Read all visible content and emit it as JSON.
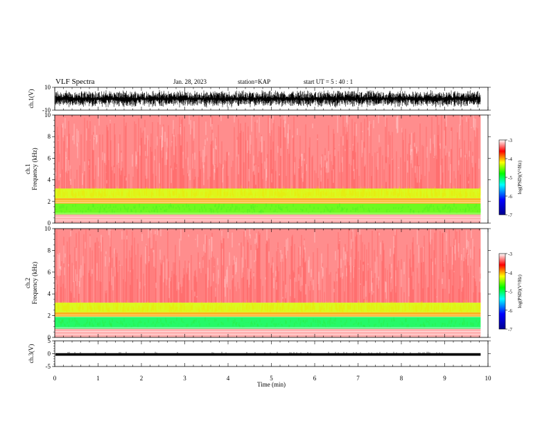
{
  "header": {
    "title": "VLF Spectra",
    "date": "Jan. 28, 2023",
    "station": "station=KAP",
    "start_time": "start UT =  5 : 40 : 1"
  },
  "colors": {
    "waveform": "#000000",
    "spectrogram_background": "#ffffff",
    "colormap": [
      "#00008f",
      "#0000ff",
      "#00ffff",
      "#00ff00",
      "#ffff00",
      "#ff0000",
      "#ffffff"
    ]
  },
  "chart_data": [
    {
      "type": "line",
      "panel": "ch1-waveform",
      "ylabel": "ch.1(V)",
      "ylim": [
        -10,
        10
      ],
      "y_ticks": [
        "10",
        "-10"
      ],
      "xlim": [
        0,
        10
      ],
      "x_unit": "min",
      "amplitude_range": [
        -8,
        8
      ]
    },
    {
      "type": "heatmap",
      "panel": "ch1-spectrogram",
      "ylabel_lines": [
        "ch.1",
        "Frequency (kHz)"
      ],
      "ylim": [
        0,
        10
      ],
      "y_ticks": [
        "0",
        "2",
        "4",
        "6",
        "8",
        "10"
      ],
      "xlim": [
        0,
        10
      ],
      "data_extent_min": [
        0,
        9.83
      ],
      "bands_khz": [
        {
          "range": [
            0,
            0.8
          ],
          "level": -3.2
        },
        {
          "range": [
            0.8,
            1.8
          ],
          "level": -4.6
        },
        {
          "range": [
            1.8,
            2.3
          ],
          "level": -4.0
        },
        {
          "range": [
            2.3,
            3.2
          ],
          "level": -4.3
        },
        {
          "range": [
            3.2,
            10
          ],
          "level": -3.3
        }
      ],
      "colorbar": {
        "label": "log(PSD)(V²/Hz)",
        "range": [
          -7,
          -3
        ],
        "ticks": [
          "-3",
          "-4",
          "-5",
          "-6",
          "-7"
        ]
      }
    },
    {
      "type": "heatmap",
      "panel": "ch2-spectrogram",
      "ylabel_lines": [
        "ch.2",
        "Frequency (kHz)"
      ],
      "ylim": [
        0,
        10
      ],
      "y_ticks": [
        "0",
        "2",
        "4",
        "6",
        "8",
        "10"
      ],
      "xlim": [
        0,
        10
      ],
      "data_extent_min": [
        0,
        9.83
      ],
      "bands_khz": [
        {
          "range": [
            0,
            0.8
          ],
          "level": -3.2
        },
        {
          "range": [
            0.8,
            1.9
          ],
          "level": -5.0
        },
        {
          "range": [
            1.9,
            2.3
          ],
          "level": -4.0
        },
        {
          "range": [
            2.3,
            3.2
          ],
          "level": -4.3
        },
        {
          "range": [
            3.2,
            10
          ],
          "level": -3.3
        }
      ],
      "colorbar": {
        "label": "log(PSD)(V²/Hz)",
        "range": [
          -7,
          -3
        ],
        "ticks": [
          "-3",
          "-4",
          "-5",
          "-6",
          "-7"
        ]
      }
    },
    {
      "type": "line",
      "panel": "ch3-waveform",
      "ylabel": "ch.3(V)",
      "ylim": [
        -5,
        5
      ],
      "y_ticks": [
        "5",
        "0",
        "-5"
      ],
      "xlim": [
        0,
        10
      ],
      "amplitude_range": [
        -0.8,
        0.2
      ],
      "xlabel": "Time (min)",
      "x_ticks": [
        "0",
        "1",
        "2",
        "3",
        "4",
        "5",
        "6",
        "7",
        "8",
        "9",
        "10"
      ]
    }
  ]
}
